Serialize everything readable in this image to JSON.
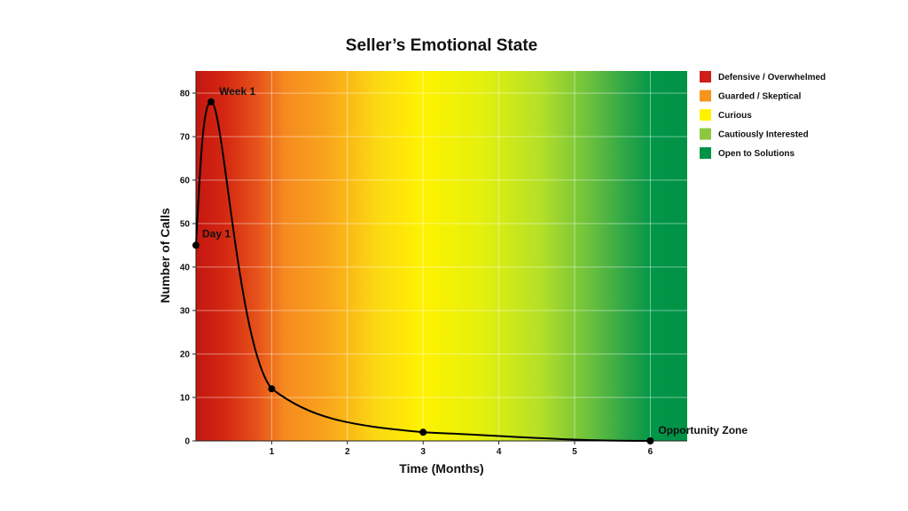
{
  "chart_data": {
    "type": "line",
    "title": "Seller’s Emotional State",
    "xlabel": "Time (Months)",
    "ylabel": "Number of Calls",
    "xlim": [
      0,
      6.5
    ],
    "ylim": [
      0,
      82
    ],
    "x_ticks": [
      "1",
      "2",
      "3",
      "4",
      "5",
      "6"
    ],
    "y_ticks": [
      "0",
      "10",
      "20",
      "30",
      "40",
      "50",
      "60",
      "70",
      "80"
    ],
    "grid": true,
    "legend_position": "right",
    "series": [
      {
        "x": [
          0,
          0.2,
          1,
          3,
          6
        ],
        "y": [
          45,
          78,
          12,
          2,
          0
        ],
        "color": "#000000"
      }
    ],
    "annotations": [
      {
        "text": "Day 1",
        "x": 0,
        "y": 45
      },
      {
        "text": "Week 1",
        "x": 0.2,
        "y": 78
      },
      {
        "text": "Opportunity Zone",
        "x": 6,
        "y": 0
      }
    ],
    "background_zones": [
      {
        "label": "Defensive / Overwhelmed",
        "color": "#cc1f1a"
      },
      {
        "label": "Guarded / Skeptical",
        "color": "#f7941d"
      },
      {
        "label": "Curious",
        "color": "#fff200"
      },
      {
        "label": "Cautiously Interested",
        "color": "#8dc63f"
      },
      {
        "label": "Open to Solutions",
        "color": "#009245"
      }
    ]
  }
}
